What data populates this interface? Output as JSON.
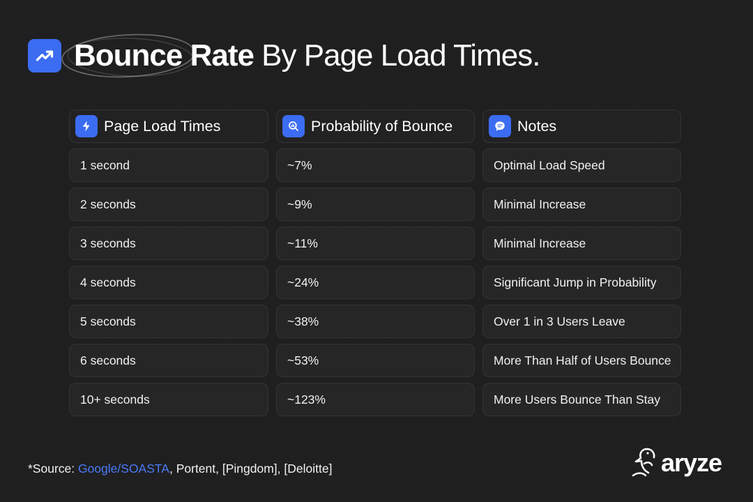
{
  "header": {
    "title_bold": "Bounce Rate",
    "title_rest": " By Page Load Times.",
    "icon": "trending-up-icon",
    "accent_color": "#3b6cf2"
  },
  "table": {
    "columns": [
      {
        "label": "Page Load Times",
        "icon": "lightning-icon"
      },
      {
        "label": "Probability of Bounce",
        "icon": "magnify-chart-icon"
      },
      {
        "label": "Notes",
        "icon": "chat-bubble-icon"
      }
    ],
    "rows": [
      {
        "time": "1 second",
        "probability": "~7%",
        "note": "Optimal Load Speed"
      },
      {
        "time": "2 seconds",
        "probability": "~9%",
        "note": "Minimal Increase"
      },
      {
        "time": "3 seconds",
        "probability": "~11%",
        "note": "Minimal Increase"
      },
      {
        "time": "4 seconds",
        "probability": "~24%",
        "note": "Significant Jump in Probability"
      },
      {
        "time": "5 seconds",
        "probability": "~38%",
        "note": "Over 1 in 3 Users Leave"
      },
      {
        "time": "6 seconds",
        "probability": "~53%",
        "note": "More Than Half of Users Bounce"
      },
      {
        "time": "10+ seconds",
        "probability": "~123%",
        "note": "More Users Bounce Than Stay"
      }
    ]
  },
  "footer": {
    "source_prefix": "*Source: ",
    "source_link": "Google/SOASTA",
    "source_rest": ", Portent, [Pingdom], [Deloitte]",
    "link_color": "#4a7af5"
  },
  "logo": {
    "text": "aryze",
    "icon": "bird-icon"
  }
}
